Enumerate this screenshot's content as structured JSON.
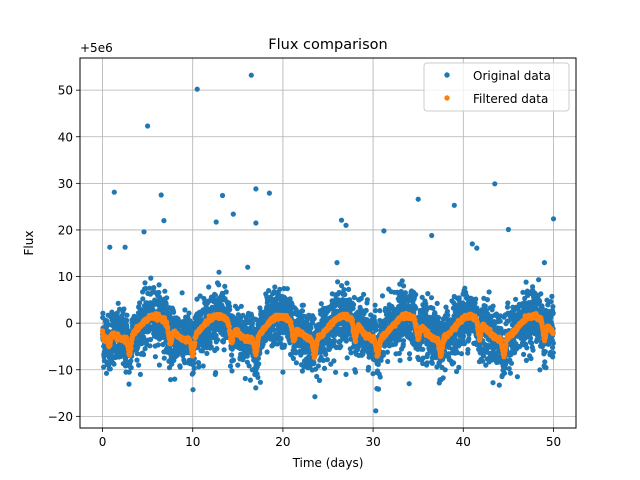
{
  "chart_data": {
    "type": "scatter",
    "title": "Flux comparison",
    "xlabel": "Time (days)",
    "ylabel": "Flux",
    "offset_label": "+5e6",
    "xlim": [
      -2.5,
      52.5
    ],
    "ylim": [
      -22.5,
      56.9
    ],
    "x_ticks": [
      0,
      10,
      20,
      30,
      40,
      50
    ],
    "x_tick_labels": [
      "0",
      "10",
      "20",
      "30",
      "40",
      "50"
    ],
    "y_ticks": [
      -20,
      -10,
      0,
      10,
      20,
      30,
      40,
      50
    ],
    "y_tick_labels": [
      "−20",
      "−10",
      "0",
      "10",
      "20",
      "30",
      "40",
      "50"
    ],
    "grid": true,
    "legend_position": "top-right",
    "series": [
      {
        "name": "Original data",
        "color": "#1f77b4",
        "notable_points": [
          [
            16.5,
            53.2
          ],
          [
            10.5,
            50.2
          ],
          [
            5.0,
            42.3
          ],
          [
            43.5,
            29.9
          ],
          [
            17.0,
            28.8
          ],
          [
            1.3,
            28.1
          ],
          [
            18.5,
            27.9
          ],
          [
            6.5,
            27.5
          ],
          [
            13.3,
            27.4
          ],
          [
            35.0,
            26.6
          ],
          [
            39.0,
            25.3
          ],
          [
            14.5,
            23.4
          ],
          [
            50.0,
            22.4
          ],
          [
            26.5,
            22.1
          ],
          [
            6.8,
            22.0
          ],
          [
            12.6,
            21.7
          ],
          [
            17.0,
            21.5
          ],
          [
            27.0,
            21.0
          ],
          [
            45.0,
            20.1
          ],
          [
            31.2,
            19.8
          ],
          [
            4.6,
            19.6
          ],
          [
            36.5,
            18.8
          ],
          [
            41.0,
            17.0
          ],
          [
            0.8,
            16.3
          ],
          [
            2.5,
            16.3
          ],
          [
            41.5,
            16.1
          ],
          [
            16.1,
            12.0
          ],
          [
            26.0,
            13.0
          ],
          [
            49.0,
            13.0
          ],
          [
            8.0,
            -12.0
          ],
          [
            17.5,
            -12.7
          ],
          [
            34.0,
            -13.0
          ],
          [
            44.0,
            -13.3
          ],
          [
            30.3,
            -18.8
          ],
          [
            12.5,
            -11.0
          ],
          [
            2.6,
            -10.5
          ],
          [
            20.0,
            -10.5
          ],
          [
            27.0,
            -11.0
          ],
          [
            46.0,
            -11.5
          ],
          [
            38.0,
            -10.0
          ],
          [
            48.5,
            -10.0
          ],
          [
            21.5,
            -8.5
          ],
          [
            29.5,
            -9.5
          ],
          [
            42.5,
            -9.0
          ],
          [
            9.5,
            -8.5
          ],
          [
            39.5,
            -9.5
          ],
          [
            33.0,
            -8.0
          ],
          [
            24.5,
            -8.0
          ],
          [
            15.0,
            -9.0
          ],
          [
            4.0,
            -9.0
          ],
          [
            36.0,
            -8.5
          ],
          [
            23.0,
            -7.5
          ],
          [
            47.0,
            -8.0
          ]
        ]
      },
      {
        "name": "Filtered data",
        "color": "#ff7f0e",
        "period_days": 7,
        "baseline": -1,
        "amplitude": 2.5,
        "dips": [
          0.2,
          0.7,
          3.0,
          7.5,
          10.0,
          14.3,
          17.0,
          21.2,
          23.5,
          28.0,
          30.5,
          35.0,
          37.5,
          41.8,
          44.5,
          49.0
        ]
      }
    ]
  }
}
